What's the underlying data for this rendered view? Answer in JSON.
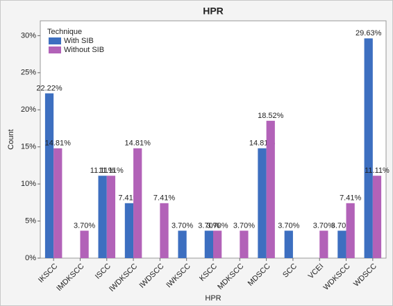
{
  "chart_data": {
    "type": "bar",
    "title": "HPR",
    "x_label": "HPR",
    "y_label": "Count",
    "legend_title": "Technique",
    "legend": "top-left",
    "categories": [
      "IKSCC",
      "IMDKSCC",
      "ISCC",
      "IWDKSCC",
      "IWDSCC",
      "IWKSCC",
      "KSCC",
      "MDKSCC",
      "MDSCC",
      "SCC",
      "VCEI",
      "WDKSCC",
      "WDSCC"
    ],
    "series": [
      {
        "name": "With SIB",
        "color": "#3d6fc0",
        "values": [
          22.22,
          null,
          11.11,
          7.41,
          null,
          3.7,
          3.7,
          null,
          14.81,
          3.7,
          null,
          3.7,
          29.63
        ],
        "value_labels": [
          "22.22%",
          null,
          "11.11%",
          "7.41%",
          null,
          "3.70%",
          "3.70%",
          null,
          "14.81%",
          "3.70%",
          null,
          "3.70%",
          "29.63%"
        ]
      },
      {
        "name": "Without SIB",
        "color": "#b262b8",
        "values": [
          14.81,
          3.7,
          11.11,
          14.81,
          7.41,
          null,
          3.7,
          3.7,
          18.52,
          null,
          3.7,
          7.41,
          11.11
        ],
        "value_labels": [
          "14.81%",
          "3.70%",
          "11.11%",
          "14.81%",
          "7.41%",
          null,
          "3.70%",
          "3.70%",
          "18.52%",
          null,
          "3.70%",
          "7.41%",
          "11.11%"
        ]
      }
    ],
    "ylim": [
      0,
      32
    ],
    "yticks": [
      {
        "value": 0,
        "label": "0%"
      },
      {
        "value": 5,
        "label": "5%"
      },
      {
        "value": 10,
        "label": "10%"
      },
      {
        "value": 15,
        "label": "15%"
      },
      {
        "value": 20,
        "label": "20%"
      },
      {
        "value": 25,
        "label": "25%"
      },
      {
        "value": 30,
        "label": "30%"
      }
    ]
  }
}
